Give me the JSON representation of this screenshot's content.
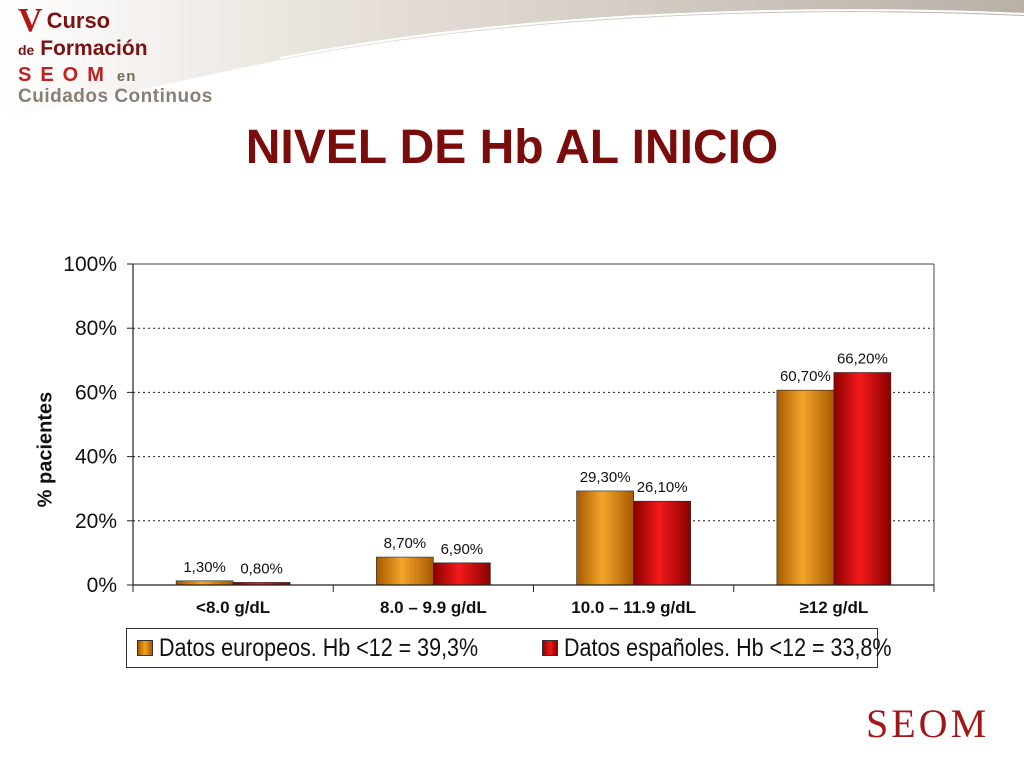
{
  "header": {
    "logo_line1_v": "V",
    "logo_line1_rest": "Curso",
    "logo_line2_de": "de",
    "logo_line2_rest": "Formación",
    "logo_line3_seom": "SEOM",
    "logo_line3_en": "en",
    "logo_line4": "Cuidados Continuos"
  },
  "slide": {
    "title": "NIVEL DE Hb AL INICIO"
  },
  "footer": {
    "brand_logo": "SEOM"
  },
  "colors": {
    "europe_bar": "#e08a0c",
    "spain_bar": "#d40e0e",
    "title": "#7a0c0c"
  },
  "chart_data": {
    "type": "bar",
    "categories": [
      "<8.0 g/dL",
      "8.0 – 9.9 g/dL",
      "10.0 – 11.9 g/dL",
      "≥12 g/dL"
    ],
    "series": [
      {
        "name": "Datos europeos. Hb <12 = 39,3%",
        "values": [
          1.3,
          8.7,
          29.3,
          60.7
        ],
        "labels": [
          "1,30%",
          "8,70%",
          "29,30%",
          "60,70%"
        ],
        "color": "#e08a0c"
      },
      {
        "name": "Datos españoles. Hb <12 = 33,8%",
        "values": [
          0.8,
          6.9,
          26.1,
          66.2
        ],
        "labels": [
          "0,80%",
          "6,90%",
          "26,10%",
          "66,20%"
        ],
        "color": "#d40e0e"
      }
    ],
    "ylabel": "% pacientes",
    "ylim": [
      0,
      100
    ],
    "yticks": [
      0,
      20,
      40,
      60,
      80,
      100
    ],
    "ytick_labels": [
      "0%",
      "20%",
      "40%",
      "60%",
      "80%",
      "100%"
    ],
    "grid": true,
    "legend_position": "bottom"
  }
}
